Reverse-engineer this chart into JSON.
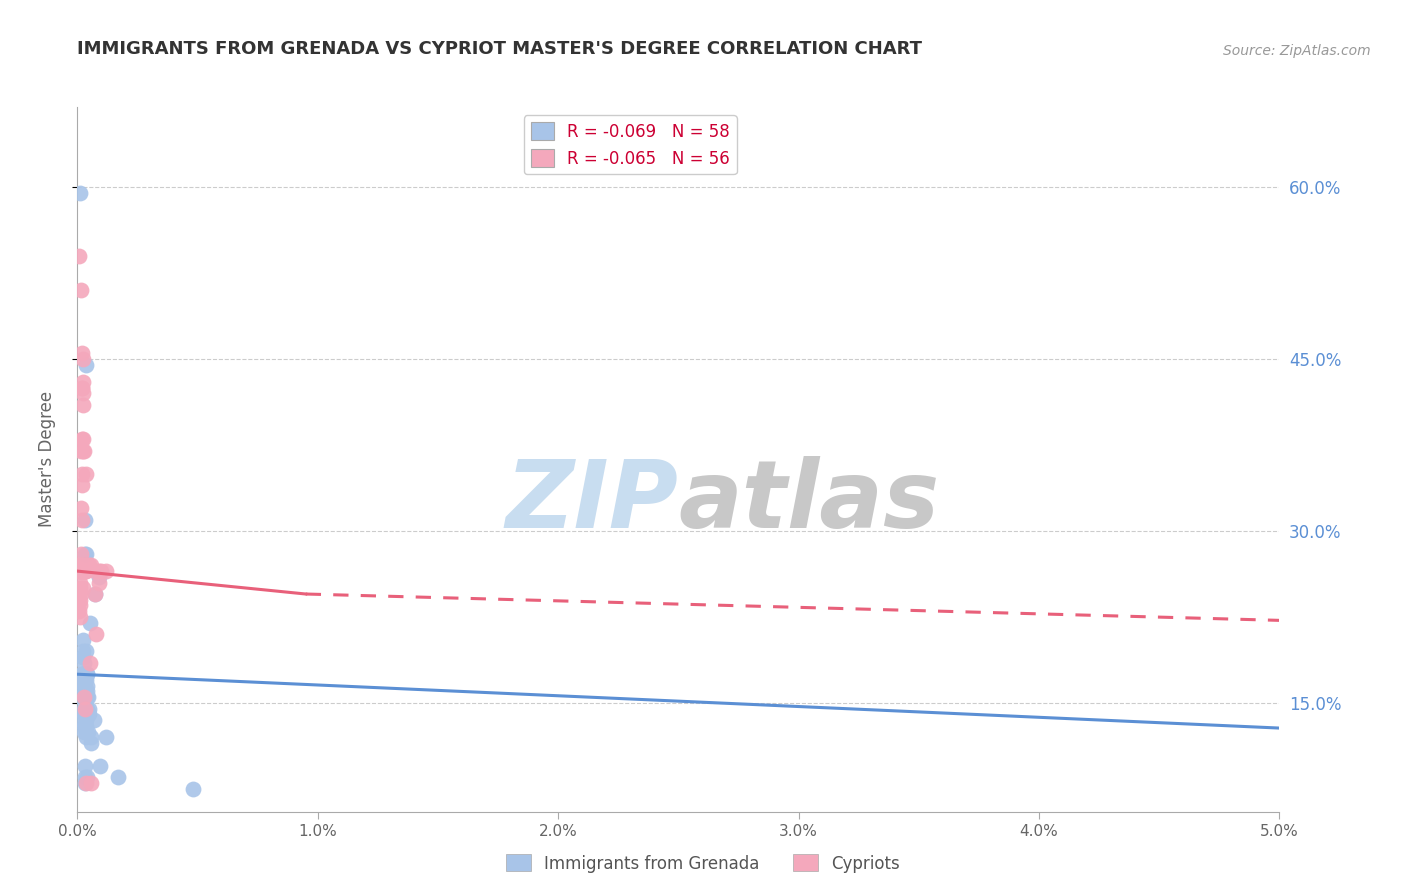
{
  "title": "IMMIGRANTS FROM GRENADA VS CYPRIOT MASTER'S DEGREE CORRELATION CHART",
  "source": "Source: ZipAtlas.com",
  "ylabel": "Master's Degree",
  "legend_label1": "Immigrants from Grenada",
  "legend_label2": "Cypriots",
  "legend_r1": "R = -0.069",
  "legend_n1": "N = 58",
  "legend_r2": "R = -0.065",
  "legend_n2": "N = 56",
  "yticks": [
    0.15,
    0.3,
    0.45,
    0.6
  ],
  "ytick_labels": [
    "15.0%",
    "30.0%",
    "45.0%",
    "60.0%"
  ],
  "blue_color": "#a8c4e8",
  "pink_color": "#f4a8bc",
  "blue_line_color": "#5b8fd4",
  "pink_line_color": "#e8607a",
  "blue_scatter": [
    [
      0.0012,
      0.595
    ],
    [
      0.0015,
      0.155
    ],
    [
      0.0016,
      0.135
    ],
    [
      0.0018,
      0.175
    ],
    [
      0.002,
      0.165
    ],
    [
      0.002,
      0.175
    ],
    [
      0.0022,
      0.205
    ],
    [
      0.0022,
      0.19
    ],
    [
      0.0023,
      0.195
    ],
    [
      0.0024,
      0.19
    ],
    [
      0.0024,
      0.175
    ],
    [
      0.0026,
      0.185
    ],
    [
      0.0026,
      0.175
    ],
    [
      0.0027,
      0.145
    ],
    [
      0.0027,
      0.17
    ],
    [
      0.0027,
      0.165
    ],
    [
      0.0028,
      0.125
    ],
    [
      0.0028,
      0.13
    ],
    [
      0.0028,
      0.14
    ],
    [
      0.003,
      0.31
    ],
    [
      0.003,
      0.155
    ],
    [
      0.003,
      0.095
    ],
    [
      0.0032,
      0.08
    ],
    [
      0.0032,
      0.085
    ],
    [
      0.0033,
      0.28
    ],
    [
      0.0033,
      0.175
    ],
    [
      0.0034,
      0.17
    ],
    [
      0.0034,
      0.155
    ],
    [
      0.0035,
      0.145
    ],
    [
      0.0035,
      0.125
    ],
    [
      0.0035,
      0.12
    ],
    [
      0.0037,
      0.135
    ],
    [
      0.0037,
      0.13
    ],
    [
      0.0038,
      0.445
    ],
    [
      0.0038,
      0.28
    ],
    [
      0.0038,
      0.195
    ],
    [
      0.0038,
      0.175
    ],
    [
      0.0039,
      0.175
    ],
    [
      0.0039,
      0.165
    ],
    [
      0.004,
      0.175
    ],
    [
      0.004,
      0.16
    ],
    [
      0.004,
      0.145
    ],
    [
      0.0042,
      0.155
    ],
    [
      0.0042,
      0.085
    ],
    [
      0.0044,
      0.155
    ],
    [
      0.0044,
      0.125
    ],
    [
      0.005,
      0.145
    ],
    [
      0.005,
      0.14
    ],
    [
      0.0052,
      0.22
    ],
    [
      0.0055,
      0.115
    ],
    [
      0.0055,
      0.12
    ],
    [
      0.007,
      0.135
    ],
    [
      0.0072,
      0.245
    ],
    [
      0.009,
      0.26
    ],
    [
      0.0095,
      0.095
    ],
    [
      0.012,
      0.12
    ],
    [
      0.017,
      0.085
    ],
    [
      0.048,
      0.075
    ]
  ],
  "pink_scatter": [
    [
      0.0005,
      0.54
    ],
    [
      0.0008,
      0.23
    ],
    [
      0.001,
      0.265
    ],
    [
      0.001,
      0.25
    ],
    [
      0.001,
      0.27
    ],
    [
      0.0012,
      0.265
    ],
    [
      0.0012,
      0.255
    ],
    [
      0.0012,
      0.24
    ],
    [
      0.0013,
      0.27
    ],
    [
      0.0013,
      0.265
    ],
    [
      0.0013,
      0.235
    ],
    [
      0.0013,
      0.225
    ],
    [
      0.0014,
      0.28
    ],
    [
      0.0014,
      0.265
    ],
    [
      0.0014,
      0.245
    ],
    [
      0.0016,
      0.37
    ],
    [
      0.0016,
      0.32
    ],
    [
      0.0017,
      0.51
    ],
    [
      0.0018,
      0.455
    ],
    [
      0.0018,
      0.425
    ],
    [
      0.0019,
      0.425
    ],
    [
      0.002,
      0.38
    ],
    [
      0.002,
      0.35
    ],
    [
      0.002,
      0.34
    ],
    [
      0.002,
      0.31
    ],
    [
      0.0022,
      0.42
    ],
    [
      0.0022,
      0.41
    ],
    [
      0.0022,
      0.38
    ],
    [
      0.0023,
      0.37
    ],
    [
      0.0024,
      0.45
    ],
    [
      0.0024,
      0.43
    ],
    [
      0.0024,
      0.265
    ],
    [
      0.0025,
      0.27
    ],
    [
      0.0025,
      0.25
    ],
    [
      0.0026,
      0.37
    ],
    [
      0.0028,
      0.265
    ],
    [
      0.0028,
      0.155
    ],
    [
      0.003,
      0.265
    ],
    [
      0.0032,
      0.265
    ],
    [
      0.0032,
      0.145
    ],
    [
      0.0035,
      0.27
    ],
    [
      0.0035,
      0.08
    ],
    [
      0.0038,
      0.35
    ],
    [
      0.0038,
      0.265
    ],
    [
      0.0039,
      0.27
    ],
    [
      0.005,
      0.27
    ],
    [
      0.0052,
      0.185
    ],
    [
      0.0055,
      0.08
    ],
    [
      0.0058,
      0.27
    ],
    [
      0.0072,
      0.265
    ],
    [
      0.0074,
      0.245
    ],
    [
      0.0078,
      0.21
    ],
    [
      0.009,
      0.265
    ],
    [
      0.0092,
      0.255
    ],
    [
      0.0098,
      0.265
    ],
    [
      0.012,
      0.265
    ]
  ],
  "blue_line": [
    [
      0.0,
      0.175
    ],
    [
      0.05,
      0.128
    ]
  ],
  "pink_line_solid": [
    [
      0.0,
      0.265
    ],
    [
      0.0095,
      0.245
    ]
  ],
  "pink_line_dashed": [
    [
      0.0095,
      0.245
    ],
    [
      0.05,
      0.222
    ]
  ],
  "xscale": 10.0,
  "xlim": [
    0.0,
    0.05
  ],
  "ylim": [
    0.055,
    0.67
  ],
  "background_color": "#ffffff",
  "grid_color": "#cccccc",
  "title_color": "#333333",
  "right_yaxis_color": "#5b8fd4",
  "watermark_zip_color": "#c8ddf0",
  "watermark_atlas_color": "#c8c8c8"
}
